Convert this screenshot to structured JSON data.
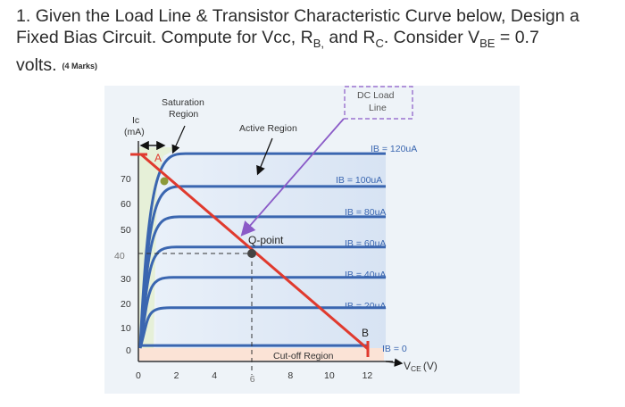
{
  "question": {
    "number": "1.",
    "line1": "Given the Load Line & Transistor Characteristic Curve below, Design a",
    "line2_a": "Fixed Bias Circuit. Compute for Vcc, R",
    "sub_b": "B,",
    "line2_b": " and R",
    "sub_c": "C",
    "line2_c": ". Consider V",
    "sub_be": "BE",
    "line2_d": " = 0.7",
    "line3": "volts.",
    "marks": "(4 Marks)"
  },
  "diagram": {
    "ic_label": "Ic",
    "ic_unit": "(mA)",
    "vce_label": "V",
    "vce_sub": "CE",
    "vce_unit": "(V)",
    "saturation_label_1": "Saturation",
    "saturation_label_2": "Region",
    "active_label": "Active Region",
    "cutoff_label": "Cut-off Region",
    "dc_load_label_1": "DC Load",
    "dc_load_label_2": "Line",
    "qpoint_label": "Q-point",
    "point_a": "A",
    "point_b": "B",
    "y_ticks": [
      "0",
      "10",
      "20",
      "30",
      "40",
      "50",
      "60",
      "70"
    ],
    "x_ticks": [
      "0",
      "2",
      "4",
      "6",
      "8",
      "10",
      "12"
    ],
    "curve_labels": [
      "IB = 120uA",
      "IB = 100uA",
      "IB = 80uA",
      "IB = 60uA",
      "IB = 40uA",
      "IB = 20uA",
      "IB = 0"
    ],
    "colors": {
      "curve": "#3a66b0",
      "load_line": "#e03a2e",
      "qpoint": "#444444",
      "saturation_fill": "#e6f0d8",
      "cutoff_fill": "#fbe3d6",
      "active_fill": "#e7eef8",
      "panel": "#eef3f8",
      "arrow_purple": "#8a5ac7"
    }
  },
  "chart_data": {
    "type": "line",
    "xlabel": "VCE (V)",
    "ylabel": "Ic (mA)",
    "xlim": [
      0,
      12
    ],
    "ylim": [
      0,
      80
    ],
    "x_ticks": [
      0,
      2,
      4,
      6,
      8,
      10,
      12
    ],
    "y_ticks": [
      0,
      10,
      20,
      30,
      40,
      50,
      60,
      70
    ],
    "series": [
      {
        "name": "IB = 120uA",
        "ic_sat": 77
      },
      {
        "name": "IB = 100uA",
        "ic_sat": 64
      },
      {
        "name": "IB = 80uA",
        "ic_sat": 52
      },
      {
        "name": "IB = 60uA",
        "ic_sat": 40
      },
      {
        "name": "IB = 40uA",
        "ic_sat": 28
      },
      {
        "name": "IB = 20uA",
        "ic_sat": 16
      },
      {
        "name": "IB = 0",
        "ic_sat": 1
      }
    ],
    "load_line": {
      "x": [
        0,
        12
      ],
      "y": [
        76,
        0
      ]
    },
    "q_point": {
      "vce": 6,
      "ic": 40
    }
  }
}
